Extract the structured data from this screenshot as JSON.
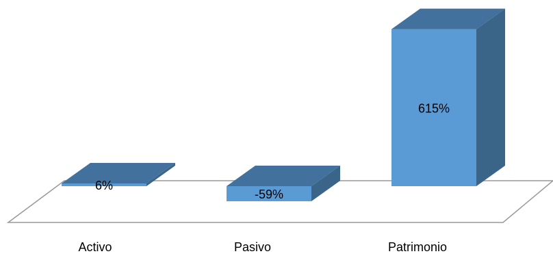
{
  "chart_data": {
    "type": "bar",
    "style": "3d-column",
    "categories": [
      "Activo",
      "Pasivo",
      "Patrimonio"
    ],
    "values": [
      6,
      -59,
      615
    ],
    "data_labels": [
      "6%",
      "-59%",
      "615%"
    ],
    "title": "",
    "xlabel": "",
    "ylabel": "",
    "ylim": [
      -70,
      650
    ],
    "grid": false,
    "legend": "none",
    "colors": {
      "bar_front": "#5B9BD5",
      "bar_top": "#41719C",
      "bar_side": "#3A6589",
      "floor_line": "#999999"
    }
  }
}
